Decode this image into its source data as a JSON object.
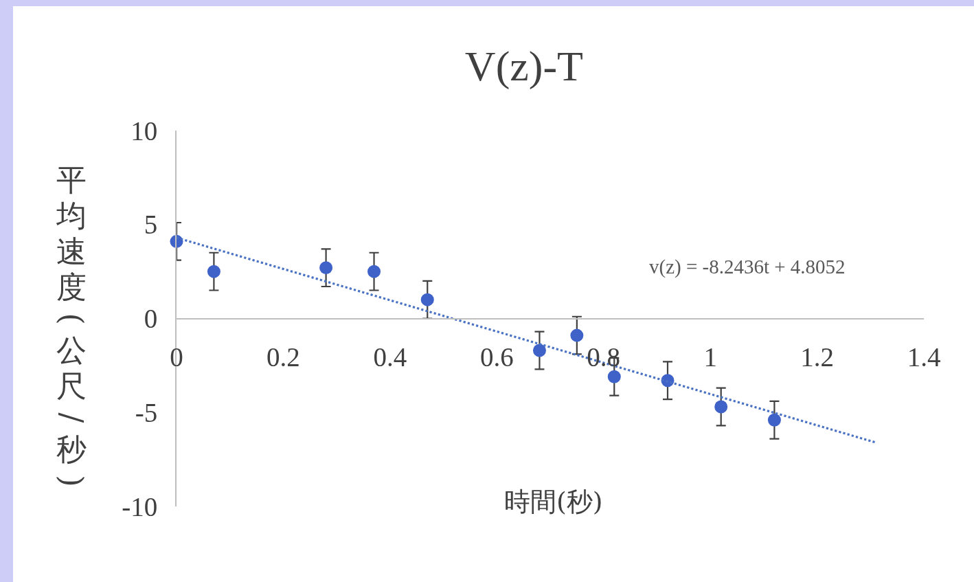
{
  "chart_data": {
    "type": "scatter",
    "title": "V(z)-T",
    "xlabel": "時間(秒)",
    "ylabel": "平均速度(公尺/秒)",
    "annotations": [
      "v(z) = -8.2436t + 4.8052"
    ],
    "marker": "circle",
    "series": [
      {
        "color": "#3f62c8",
        "x": [
          0,
          0.07,
          0.28,
          0.37,
          0.47,
          0.68,
          0.75,
          0.82,
          0.92,
          1.02,
          1.12
        ],
        "values": [
          4.1,
          2.5,
          2.7,
          2.5,
          1.0,
          -1.7,
          -0.9,
          -3.1,
          -3.3,
          -4.7,
          -5.4
        ],
        "errors": [
          1,
          1,
          1,
          1,
          1,
          1,
          1,
          1,
          1,
          1,
          1
        ]
      },
      {
        "type": "line",
        "color": "#4a72c4",
        "x": [
          0,
          1.31
        ],
        "values": [
          4.3,
          -6.6
        ],
        "line_style": "dotted",
        "marker": "none"
      }
    ],
    "xlim": [
      0,
      1.4
    ],
    "xticks": [
      0,
      0.2,
      0.4,
      0.6,
      0.8,
      1,
      1.2,
      1.4
    ],
    "ylim": [
      -10,
      10
    ],
    "yticks": [
      -10,
      -5,
      0,
      5,
      10
    ]
  }
}
